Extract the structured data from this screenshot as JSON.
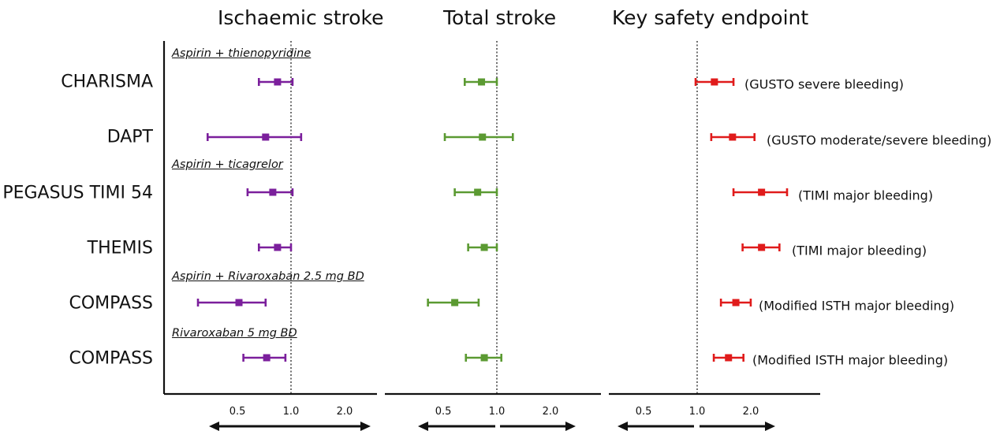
{
  "panels": [
    {
      "title": "Ischaemic stroke",
      "color": "#7b1f9c"
    },
    {
      "title": "Total stroke",
      "color": "#5b9a32"
    },
    {
      "title": "Key safety endpoint",
      "color": "#e01b1b"
    }
  ],
  "group_labels": [
    "Aspirin + thienopyridine",
    "Aspirin + ticagrelor",
    "Aspirin + Rivaroxaban 2.5 mg BD",
    "Rivaroxaban 5 mg BD"
  ],
  "trials": [
    "CHARISMA",
    "DAPT",
    "PEGASUS TIMI 54",
    "THEMIS",
    "COMPASS",
    "COMPASS"
  ],
  "safety_endpoints": [
    "(GUSTO severe bleeding)",
    "(GUSTO moderate/severe bleeding)",
    "(TIMI major bleeding)",
    "(TIMI major bleeding)",
    "(Modified ISTH major bleeding)",
    "(Modified ISTH major bleeding)"
  ],
  "chart_data": {
    "type": "forest",
    "x_scale": "log",
    "xticks": [
      "0.5",
      "1.0",
      "2.0"
    ],
    "reference_line": 1.0,
    "series": [
      {
        "panel": "Ischaemic stroke",
        "points": [
          {
            "trial": "CHARISMA",
            "est": 0.84,
            "low": 0.66,
            "high": 1.02
          },
          {
            "trial": "DAPT",
            "est": 0.72,
            "low": 0.34,
            "high": 1.14
          },
          {
            "trial": "PEGASUS TIMI 54",
            "est": 0.79,
            "low": 0.57,
            "high": 1.02
          },
          {
            "trial": "THEMIS",
            "est": 0.84,
            "low": 0.66,
            "high": 1.0
          },
          {
            "trial": "COMPASS",
            "est": 0.51,
            "low": 0.3,
            "high": 0.72
          },
          {
            "trial": "COMPASS",
            "est": 0.73,
            "low": 0.54,
            "high": 0.93
          }
        ]
      },
      {
        "panel": "Total stroke",
        "points": [
          {
            "trial": "CHARISMA",
            "est": 0.82,
            "low": 0.66,
            "high": 1.0
          },
          {
            "trial": "DAPT",
            "est": 0.83,
            "low": 0.51,
            "high": 1.23
          },
          {
            "trial": "PEGASUS TIMI 54",
            "est": 0.78,
            "low": 0.58,
            "high": 1.0
          },
          {
            "trial": "THEMIS",
            "est": 0.85,
            "low": 0.69,
            "high": 1.0
          },
          {
            "trial": "COMPASS",
            "est": 0.58,
            "low": 0.41,
            "high": 0.79
          },
          {
            "trial": "COMPASS",
            "est": 0.85,
            "low": 0.67,
            "high": 1.06
          }
        ]
      },
      {
        "panel": "Key safety endpoint",
        "points": [
          {
            "trial": "CHARISMA",
            "est": 1.25,
            "low": 0.98,
            "high": 1.6
          },
          {
            "trial": "DAPT",
            "est": 1.58,
            "low": 1.2,
            "high": 2.1
          },
          {
            "trial": "PEGASUS TIMI 54",
            "est": 2.3,
            "low": 1.6,
            "high": 3.2
          },
          {
            "trial": "THEMIS",
            "est": 2.3,
            "low": 1.8,
            "high": 2.9
          },
          {
            "trial": "COMPASS",
            "est": 1.65,
            "low": 1.36,
            "high": 2.0
          },
          {
            "trial": "COMPASS",
            "est": 1.5,
            "low": 1.24,
            "high": 1.82
          }
        ]
      }
    ]
  }
}
